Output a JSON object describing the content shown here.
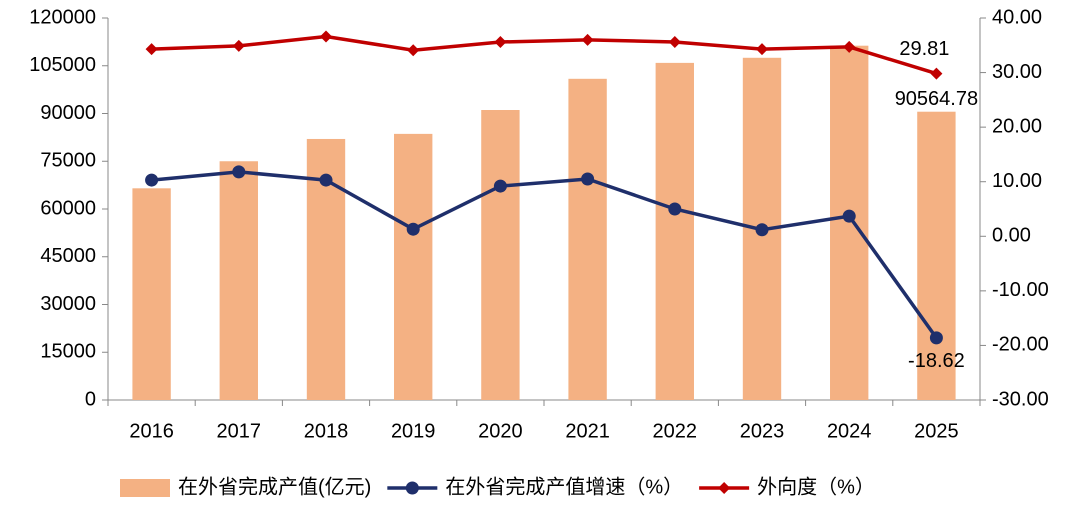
{
  "chart_data": {
    "type": "bar_line",
    "categories": [
      "2016",
      "2017",
      "2018",
      "2019",
      "2020",
      "2021",
      "2022",
      "2023",
      "2024",
      "2025"
    ],
    "series": [
      {
        "name": "在外省完成产值(亿元)",
        "type": "bar",
        "color": "#f4b183",
        "values": [
          66500,
          75000,
          82000,
          83600,
          91100,
          100900,
          105900,
          107500,
          111300,
          90564.78
        ],
        "value_labels": [
          null,
          null,
          null,
          null,
          null,
          null,
          null,
          null,
          null,
          "90564.78"
        ]
      },
      {
        "name": "在外省完成产值增速（%）",
        "type": "line",
        "axis": "y2",
        "color": "#1f2f6b",
        "marker": "circle",
        "values": [
          10.3,
          11.8,
          10.3,
          1.3,
          9.2,
          10.5,
          5.0,
          1.2,
          3.7,
          -18.62
        ],
        "value_labels": [
          null,
          null,
          null,
          null,
          null,
          null,
          null,
          null,
          null,
          "-18.62"
        ]
      },
      {
        "name": "外向度（%）",
        "type": "line",
        "axis": "y2",
        "color": "#c00000",
        "marker": "diamond",
        "values": [
          34.3,
          34.9,
          36.6,
          34.1,
          35.6,
          36.0,
          35.6,
          34.3,
          34.7,
          29.81
        ],
        "value_labels": [
          null,
          null,
          null,
          null,
          null,
          null,
          null,
          null,
          null,
          "29.81"
        ]
      }
    ],
    "ylim": [
      0,
      120000
    ],
    "yticks": [
      0,
      15000,
      30000,
      45000,
      60000,
      75000,
      90000,
      105000,
      120000
    ],
    "y2lim": [
      -30,
      40
    ],
    "y2ticks": [
      {
        "value": -30,
        "label": "-30.00"
      },
      {
        "value": -20,
        "label": "-20.00"
      },
      {
        "value": -10,
        "label": "-10.00"
      },
      {
        "value": 0,
        "label": "0.00"
      },
      {
        "value": 10,
        "label": "10.00"
      },
      {
        "value": 20,
        "label": "20.00"
      },
      {
        "value": 30,
        "label": "30.00"
      },
      {
        "value": 40,
        "label": "40.00"
      }
    ],
    "legend": "bottom",
    "grid": false
  }
}
